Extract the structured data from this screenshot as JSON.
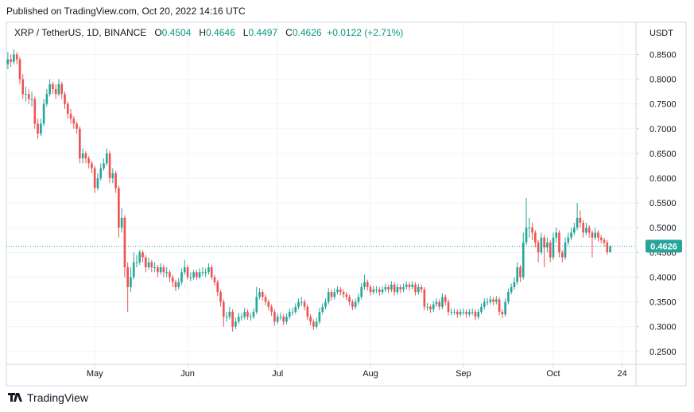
{
  "header": "Published on TradingView.com, Oct 20, 2022 14:16 UTC",
  "footer": "TradingView",
  "chart_data": {
    "type": "candlestick",
    "symbol": "XRP / TetherUS, 1D, BINANCE",
    "legend_labels": [
      "O",
      "H",
      "L",
      "C"
    ],
    "change": "+0.0122 (+2.71%)",
    "currency": "USDT",
    "up_color": "#26a69a",
    "down_color": "#ef5350",
    "grid": true,
    "xlim": [
      -0.5,
      209.6
    ],
    "xticks": [
      {
        "value": 29,
        "label": "May"
      },
      {
        "value": 60,
        "label": "Jun"
      },
      {
        "value": 90,
        "label": "Jul"
      },
      {
        "value": 121,
        "label": "Aug"
      },
      {
        "value": 152,
        "label": "Sep"
      },
      {
        "value": 182,
        "label": "Oct"
      },
      {
        "value": 205,
        "label": "24"
      }
    ],
    "ylim": [
      0.224,
      0.915
    ],
    "yticks": [
      {
        "value": 0.25,
        "label": "0.2500"
      },
      {
        "value": 0.3,
        "label": "0.3000"
      },
      {
        "value": 0.35,
        "label": "0.3500"
      },
      {
        "value": 0.4,
        "label": "0.4000"
      },
      {
        "value": 0.45,
        "label": "0.4500"
      },
      {
        "value": 0.5,
        "label": "0.5000"
      },
      {
        "value": 0.55,
        "label": "0.5500"
      },
      {
        "value": 0.6,
        "label": "0.6000"
      },
      {
        "value": 0.65,
        "label": "0.6500"
      },
      {
        "value": 0.7,
        "label": "0.7000"
      },
      {
        "value": 0.75,
        "label": "0.7500"
      },
      {
        "value": 0.8,
        "label": "0.8000"
      },
      {
        "value": 0.85,
        "label": "0.8500"
      }
    ],
    "open": [
      0.83,
      0.84,
      0.835,
      0.85,
      0.84,
      0.8,
      0.77,
      0.77,
      0.76,
      0.76,
      0.71,
      0.69,
      0.71,
      0.75,
      0.77,
      0.79,
      0.78,
      0.77,
      0.79,
      0.77,
      0.75,
      0.73,
      0.72,
      0.71,
      0.7,
      0.64,
      0.65,
      0.64,
      0.63,
      0.62,
      0.58,
      0.6,
      0.62,
      0.63,
      0.65,
      0.6,
      0.61,
      0.58,
      0.5,
      0.52,
      0.42,
      0.38,
      0.4,
      0.43,
      0.43,
      0.45,
      0.44,
      0.42,
      0.43,
      0.42,
      0.42,
      0.41,
      0.42,
      0.41,
      0.41,
      0.4,
      0.39,
      0.38,
      0.39,
      0.41,
      0.42,
      0.4,
      0.4,
      0.41,
      0.4,
      0.41,
      0.41,
      0.41,
      0.42,
      0.4,
      0.39,
      0.37,
      0.35,
      0.32,
      0.32,
      0.33,
      0.3,
      0.31,
      0.32,
      0.32,
      0.33,
      0.32,
      0.32,
      0.33,
      0.36,
      0.37,
      0.36,
      0.35,
      0.34,
      0.33,
      0.31,
      0.32,
      0.32,
      0.31,
      0.32,
      0.33,
      0.33,
      0.34,
      0.35,
      0.35,
      0.34,
      0.32,
      0.31,
      0.3,
      0.31,
      0.33,
      0.34,
      0.35,
      0.37,
      0.36,
      0.37,
      0.375,
      0.37,
      0.365,
      0.36,
      0.35,
      0.34,
      0.35,
      0.36,
      0.38,
      0.39,
      0.38,
      0.37,
      0.375,
      0.375,
      0.37,
      0.375,
      0.38,
      0.375,
      0.385,
      0.37,
      0.38,
      0.375,
      0.38,
      0.385,
      0.38,
      0.385,
      0.37,
      0.38,
      0.375,
      0.34,
      0.34,
      0.335,
      0.345,
      0.35,
      0.34,
      0.36,
      0.35,
      0.33,
      0.33,
      0.33,
      0.325,
      0.33,
      0.33,
      0.325,
      0.33,
      0.33,
      0.32,
      0.33,
      0.34,
      0.35,
      0.35,
      0.355,
      0.35,
      0.355,
      0.33,
      0.325,
      0.35,
      0.37,
      0.38,
      0.39,
      0.42,
      0.4,
      0.47,
      0.5,
      0.5,
      0.49,
      0.47,
      0.45,
      0.48,
      0.46,
      0.47,
      0.44,
      0.48,
      0.49,
      0.45,
      0.44,
      0.47,
      0.48,
      0.49,
      0.5,
      0.52,
      0.51,
      0.49,
      0.5,
      0.49,
      0.48,
      0.49,
      0.48,
      0.475,
      0.47,
      0.4504
    ],
    "high": [
      0.855,
      0.85,
      0.86,
      0.855,
      0.845,
      0.81,
      0.785,
      0.78,
      0.775,
      0.765,
      0.72,
      0.72,
      0.76,
      0.78,
      0.8,
      0.795,
      0.79,
      0.8,
      0.795,
      0.775,
      0.755,
      0.74,
      0.725,
      0.715,
      0.705,
      0.66,
      0.655,
      0.645,
      0.635,
      0.625,
      0.61,
      0.63,
      0.64,
      0.66,
      0.655,
      0.62,
      0.615,
      0.585,
      0.54,
      0.525,
      0.43,
      0.42,
      0.45,
      0.445,
      0.455,
      0.455,
      0.445,
      0.44,
      0.435,
      0.43,
      0.425,
      0.428,
      0.425,
      0.42,
      0.415,
      0.405,
      0.395,
      0.398,
      0.418,
      0.435,
      0.425,
      0.41,
      0.415,
      0.415,
      0.418,
      0.42,
      0.418,
      0.428,
      0.425,
      0.405,
      0.395,
      0.375,
      0.355,
      0.33,
      0.34,
      0.335,
      0.318,
      0.328,
      0.327,
      0.338,
      0.335,
      0.328,
      0.337,
      0.38,
      0.378,
      0.375,
      0.365,
      0.355,
      0.345,
      0.335,
      0.327,
      0.328,
      0.325,
      0.327,
      0.337,
      0.338,
      0.347,
      0.357,
      0.36,
      0.355,
      0.345,
      0.325,
      0.315,
      0.318,
      0.338,
      0.347,
      0.357,
      0.378,
      0.375,
      0.377,
      0.382,
      0.38,
      0.375,
      0.37,
      0.365,
      0.355,
      0.357,
      0.367,
      0.388,
      0.405,
      0.395,
      0.385,
      0.382,
      0.382,
      0.38,
      0.382,
      0.387,
      0.385,
      0.392,
      0.39,
      0.387,
      0.385,
      0.387,
      0.392,
      0.39,
      0.392,
      0.39,
      0.387,
      0.385,
      0.38,
      0.348,
      0.345,
      0.352,
      0.357,
      0.355,
      0.367,
      0.365,
      0.355,
      0.337,
      0.336,
      0.335,
      0.336,
      0.337,
      0.335,
      0.336,
      0.337,
      0.335,
      0.336,
      0.347,
      0.357,
      0.358,
      0.362,
      0.36,
      0.362,
      0.36,
      0.335,
      0.357,
      0.377,
      0.387,
      0.4,
      0.43,
      0.425,
      0.49,
      0.56,
      0.52,
      0.51,
      0.495,
      0.475,
      0.49,
      0.485,
      0.48,
      0.475,
      0.49,
      0.5,
      0.495,
      0.455,
      0.48,
      0.49,
      0.5,
      0.51,
      0.55,
      0.535,
      0.515,
      0.51,
      0.505,
      0.495,
      0.5,
      0.495,
      0.485,
      0.48,
      0.475,
      0.4646
    ],
    "low": [
      0.82,
      0.825,
      0.83,
      0.83,
      0.79,
      0.76,
      0.755,
      0.75,
      0.745,
      0.7,
      0.68,
      0.685,
      0.705,
      0.745,
      0.765,
      0.77,
      0.76,
      0.765,
      0.76,
      0.74,
      0.72,
      0.71,
      0.7,
      0.69,
      0.63,
      0.63,
      0.63,
      0.62,
      0.61,
      0.57,
      0.575,
      0.595,
      0.615,
      0.625,
      0.59,
      0.59,
      0.57,
      0.48,
      0.49,
      0.4,
      0.33,
      0.37,
      0.395,
      0.42,
      0.425,
      0.43,
      0.41,
      0.415,
      0.41,
      0.41,
      0.4,
      0.405,
      0.4,
      0.4,
      0.39,
      0.38,
      0.372,
      0.375,
      0.385,
      0.405,
      0.395,
      0.392,
      0.395,
      0.395,
      0.396,
      0.402,
      0.4,
      0.405,
      0.395,
      0.383,
      0.362,
      0.34,
      0.3,
      0.31,
      0.315,
      0.29,
      0.295,
      0.305,
      0.312,
      0.315,
      0.314,
      0.312,
      0.316,
      0.325,
      0.355,
      0.353,
      0.343,
      0.333,
      0.322,
      0.302,
      0.305,
      0.313,
      0.303,
      0.305,
      0.315,
      0.322,
      0.325,
      0.335,
      0.342,
      0.333,
      0.313,
      0.303,
      0.293,
      0.296,
      0.305,
      0.325,
      0.335,
      0.345,
      0.353,
      0.355,
      0.365,
      0.363,
      0.358,
      0.353,
      0.343,
      0.333,
      0.335,
      0.345,
      0.355,
      0.375,
      0.373,
      0.363,
      0.365,
      0.368,
      0.363,
      0.365,
      0.37,
      0.368,
      0.37,
      0.363,
      0.365,
      0.368,
      0.37,
      0.375,
      0.373,
      0.375,
      0.363,
      0.365,
      0.368,
      0.333,
      0.332,
      0.328,
      0.33,
      0.34,
      0.333,
      0.335,
      0.343,
      0.323,
      0.323,
      0.324,
      0.318,
      0.32,
      0.323,
      0.318,
      0.32,
      0.323,
      0.313,
      0.315,
      0.325,
      0.335,
      0.343,
      0.345,
      0.343,
      0.345,
      0.323,
      0.318,
      0.32,
      0.345,
      0.365,
      0.375,
      0.385,
      0.39,
      0.395,
      0.465,
      0.48,
      0.475,
      0.46,
      0.43,
      0.445,
      0.42,
      0.45,
      0.43,
      0.435,
      0.47,
      0.44,
      0.43,
      0.435,
      0.465,
      0.475,
      0.485,
      0.495,
      0.5,
      0.48,
      0.485,
      0.48,
      0.44,
      0.475,
      0.472,
      0.468,
      0.462,
      0.445,
      0.4497
    ],
    "close": [
      0.84,
      0.835,
      0.85,
      0.84,
      0.8,
      0.77,
      0.77,
      0.76,
      0.76,
      0.71,
      0.69,
      0.71,
      0.75,
      0.77,
      0.79,
      0.78,
      0.77,
      0.79,
      0.77,
      0.75,
      0.73,
      0.72,
      0.71,
      0.7,
      0.64,
      0.65,
      0.64,
      0.63,
      0.62,
      0.58,
      0.6,
      0.62,
      0.63,
      0.65,
      0.6,
      0.61,
      0.58,
      0.5,
      0.52,
      0.42,
      0.38,
      0.4,
      0.43,
      0.43,
      0.45,
      0.44,
      0.42,
      0.43,
      0.42,
      0.42,
      0.41,
      0.42,
      0.41,
      0.41,
      0.4,
      0.39,
      0.38,
      0.39,
      0.41,
      0.42,
      0.4,
      0.4,
      0.41,
      0.4,
      0.41,
      0.41,
      0.41,
      0.42,
      0.4,
      0.39,
      0.37,
      0.35,
      0.32,
      0.32,
      0.33,
      0.3,
      0.31,
      0.32,
      0.32,
      0.33,
      0.32,
      0.32,
      0.33,
      0.36,
      0.37,
      0.36,
      0.35,
      0.34,
      0.33,
      0.31,
      0.32,
      0.32,
      0.31,
      0.32,
      0.33,
      0.33,
      0.34,
      0.35,
      0.35,
      0.34,
      0.32,
      0.31,
      0.3,
      0.31,
      0.33,
      0.34,
      0.35,
      0.37,
      0.36,
      0.37,
      0.375,
      0.37,
      0.365,
      0.36,
      0.35,
      0.34,
      0.35,
      0.36,
      0.38,
      0.39,
      0.38,
      0.37,
      0.375,
      0.375,
      0.37,
      0.375,
      0.38,
      0.375,
      0.385,
      0.37,
      0.38,
      0.375,
      0.38,
      0.385,
      0.38,
      0.385,
      0.37,
      0.38,
      0.375,
      0.34,
      0.34,
      0.335,
      0.345,
      0.35,
      0.34,
      0.36,
      0.35,
      0.33,
      0.33,
      0.33,
      0.325,
      0.33,
      0.33,
      0.325,
      0.33,
      0.33,
      0.32,
      0.33,
      0.34,
      0.35,
      0.35,
      0.355,
      0.35,
      0.355,
      0.33,
      0.325,
      0.35,
      0.37,
      0.38,
      0.39,
      0.42,
      0.4,
      0.47,
      0.5,
      0.5,
      0.49,
      0.47,
      0.45,
      0.48,
      0.46,
      0.47,
      0.44,
      0.48,
      0.49,
      0.45,
      0.44,
      0.47,
      0.48,
      0.49,
      0.5,
      0.52,
      0.51,
      0.49,
      0.5,
      0.49,
      0.48,
      0.49,
      0.48,
      0.475,
      0.47,
      0.4504,
      0.4626
    ]
  }
}
